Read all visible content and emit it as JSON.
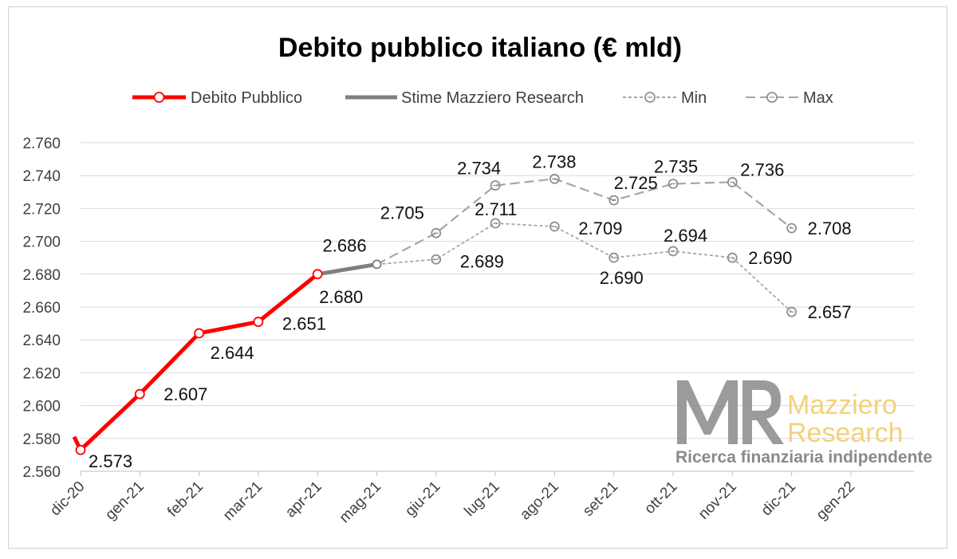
{
  "chart_data": {
    "type": "line",
    "title": "Debito pubblico italiano (€ mld)",
    "categories": [
      "dic-20",
      "gen-21",
      "feb-21",
      "mar-21",
      "apr-21",
      "mag-21",
      "giu-21",
      "lug-21",
      "ago-21",
      "set-21",
      "ott-21",
      "nov-21",
      "dic-21",
      "gen-22"
    ],
    "ylim": [
      2560,
      2760
    ],
    "yticks": [
      "2.560",
      "2.580",
      "2.600",
      "2.620",
      "2.640",
      "2.660",
      "2.680",
      "2.700",
      "2.720",
      "2.740",
      "2.760"
    ],
    "grid": true,
    "legend_position": "top",
    "series": [
      {
        "name": "Debito Pubblico",
        "color": "#ff0000",
        "style": "solid",
        "pre_value": 2581,
        "points": [
          {
            "x": 0,
            "y": 2573,
            "label": "2.573"
          },
          {
            "x": 1,
            "y": 2607,
            "label": "2.607"
          },
          {
            "x": 2,
            "y": 2644,
            "label": "2.644"
          },
          {
            "x": 3,
            "y": 2651,
            "label": "2.651"
          },
          {
            "x": 4,
            "y": 2680,
            "label": "2.680"
          }
        ]
      },
      {
        "name": "Stime Mazziero Research",
        "color": "#7f7f7f",
        "style": "solid",
        "points": [
          {
            "x": 4,
            "y": 2680
          },
          {
            "x": 5,
            "y": 2686,
            "label": "2.686"
          }
        ]
      },
      {
        "name": "Min",
        "color": "#a6a6a6",
        "style": "dotted",
        "points": [
          {
            "x": 5,
            "y": 2686
          },
          {
            "x": 6,
            "y": 2689,
            "label": "2.689"
          },
          {
            "x": 7,
            "y": 2711,
            "label": "2.711"
          },
          {
            "x": 8,
            "y": 2709,
            "label": "2.709"
          },
          {
            "x": 9,
            "y": 2690,
            "label": "2.690"
          },
          {
            "x": 10,
            "y": 2694,
            "label": "2.694"
          },
          {
            "x": 11,
            "y": 2690,
            "label": "2.690"
          },
          {
            "x": 12,
            "y": 2657,
            "label": "2.657"
          }
        ]
      },
      {
        "name": "Max",
        "color": "#a6a6a6",
        "style": "dashed",
        "points": [
          {
            "x": 5,
            "y": 2686
          },
          {
            "x": 6,
            "y": 2705,
            "label": "2.705"
          },
          {
            "x": 7,
            "y": 2734,
            "label": "2.734"
          },
          {
            "x": 8,
            "y": 2738,
            "label": "2.738"
          },
          {
            "x": 9,
            "y": 2725,
            "label": "2.725"
          },
          {
            "x": 10,
            "y": 2735,
            "label": "2.735"
          },
          {
            "x": 11,
            "y": 2736,
            "label": "2.736"
          },
          {
            "x": 12,
            "y": 2708,
            "label": "2.708"
          }
        ]
      }
    ]
  },
  "logo": {
    "initials": "MR",
    "name_line1": "Mazziero",
    "name_line2": "Research",
    "tagline": "Ricerca finanziaria indipendente",
    "color_gray": "#8a8a8a",
    "color_gold": "#f2d27a"
  }
}
